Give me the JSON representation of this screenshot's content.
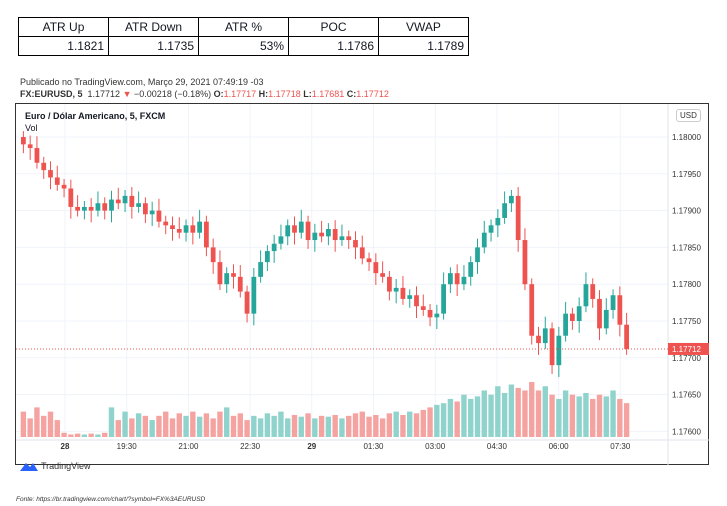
{
  "stats_table": {
    "headers": [
      "ATR Up",
      "ATR Down",
      "ATR %",
      "POC",
      "VWAP"
    ],
    "values": [
      "1.1821",
      "1.1735",
      "53%",
      "1.1786",
      "1.1789"
    ]
  },
  "published": "Publicado no TradingView.com, Março 29, 2021 07:49:19 -03",
  "symbol_line": {
    "symbol": "FX:EURUSD, 5",
    "last": "1.17712",
    "change": "−0.00218 (−0.18%)",
    "o_label": "O:",
    "o": "1.17717",
    "h_label": "H:",
    "h": "1.17718",
    "l_label": "L:",
    "l": "1.17681",
    "c_label": "C:",
    "c": "1.17712"
  },
  "chart_title": "Euro / Dólar Americano, 5, FXCM",
  "vol_label": "Vol",
  "currency": "USD",
  "current_price_label": "1.17712",
  "logo_text": "TradingView",
  "source": "Fonte: https://br.tradingview.com/chart/?symbol=FX%3AEURUSD",
  "colors": {
    "up": "#26a69a",
    "down": "#ef5350",
    "up_vol": "#8fd3cc",
    "down_vol": "#f5a3a1"
  },
  "chart_data": {
    "type": "candlestick",
    "title": "Euro / Dólar Americano, 5, FXCM",
    "ylim": [
      1.1757,
      1.18045
    ],
    "yticks": [
      "1.18000",
      "1.17950",
      "1.17900",
      "1.17850",
      "1.17800",
      "1.17750",
      "1.17700",
      "1.17650",
      "1.17600"
    ],
    "xticks": [
      "28",
      "19:30",
      "21:00",
      "22:30",
      "29",
      "01:30",
      "03:00",
      "04:30",
      "06:00",
      "07:30"
    ],
    "start_open": 1.18,
    "closes": [
      1.1799,
      1.17985,
      1.17965,
      1.17955,
      1.17945,
      1.17935,
      1.1793,
      1.17905,
      1.179,
      1.17905,
      1.179,
      1.1791,
      1.179,
      1.17915,
      1.1791,
      1.1792,
      1.17905,
      1.1791,
      1.17895,
      1.179,
      1.17885,
      1.1788,
      1.17875,
      1.1787,
      1.1788,
      1.1787,
      1.17885,
      1.1785,
      1.1783,
      1.178,
      1.17815,
      1.1781,
      1.1779,
      1.1776,
      1.1781,
      1.1783,
      1.17845,
      1.17855,
      1.17865,
      1.1788,
      1.1787,
      1.17885,
      1.1786,
      1.1787,
      1.17865,
      1.17875,
      1.1786,
      1.17865,
      1.1786,
      1.1785,
      1.17835,
      1.1783,
      1.17815,
      1.1781,
      1.1779,
      1.17795,
      1.1778,
      1.17785,
      1.1777,
      1.17765,
      1.17755,
      1.1776,
      1.178,
      1.17815,
      1.178,
      1.1781,
      1.1783,
      1.1785,
      1.1787,
      1.1788,
      1.1789,
      1.1791,
      1.1792,
      1.1786,
      1.178,
      1.1773,
      1.1772,
      1.1774,
      1.1769,
      1.1773,
      1.1776,
      1.1775,
      1.1777,
      1.178,
      1.1778,
      1.1774,
      1.17765,
      1.17785,
      1.17745,
      1.17712
    ],
    "volumes": [
      30,
      22,
      35,
      25,
      30,
      20,
      5,
      3,
      4,
      3,
      4,
      3,
      5,
      35,
      20,
      30,
      22,
      28,
      25,
      20,
      25,
      30,
      22,
      28,
      25,
      30,
      24,
      28,
      22,
      30,
      35,
      25,
      28,
      20,
      25,
      22,
      28,
      25,
      30,
      22,
      26,
      24,
      28,
      22,
      25,
      24,
      26,
      22,
      25,
      28,
      30,
      24,
      26,
      22,
      28,
      30,
      26,
      30,
      28,
      32,
      35,
      38,
      40,
      45,
      42,
      50,
      45,
      48,
      55,
      50,
      60,
      52,
      62,
      58,
      55,
      65,
      55,
      60,
      50,
      45,
      55,
      50,
      48,
      52,
      45,
      50,
      48,
      55,
      45,
      40
    ]
  }
}
